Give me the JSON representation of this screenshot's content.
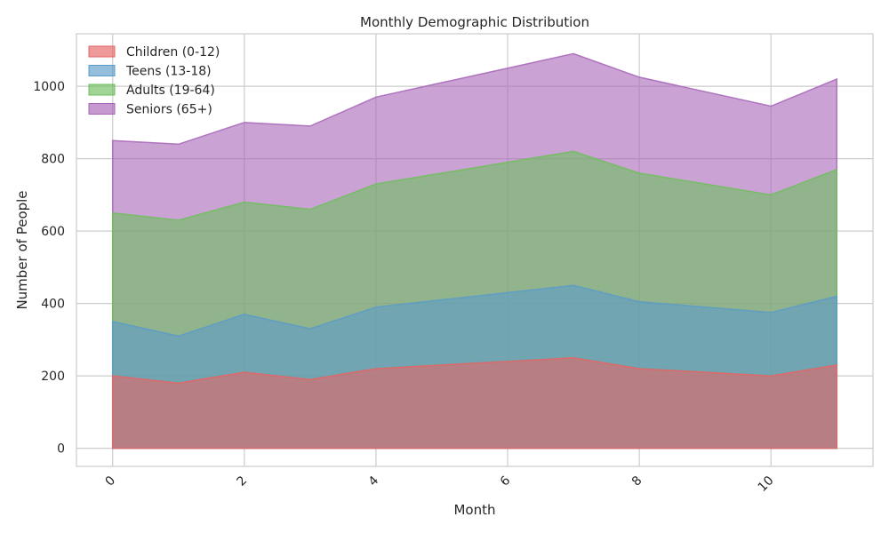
{
  "chart_data": {
    "type": "area",
    "title": "Monthly Demographic Distribution",
    "xlabel": "Month",
    "ylabel": "Number of People",
    "x": [
      0,
      1,
      2,
      3,
      4,
      5,
      6,
      7,
      8,
      9,
      10,
      11
    ],
    "xlim": [
      -0.55,
      11.55
    ],
    "ylim": [
      -50,
      1145
    ],
    "x_ticks": [
      0,
      2,
      4,
      6,
      8,
      10
    ],
    "y_ticks": [
      0,
      200,
      400,
      600,
      800,
      1000
    ],
    "grid": true,
    "legend_position": "top-left",
    "series": [
      {
        "name": "Children (0-12)",
        "color": "#e66464",
        "values": [
          200,
          180,
          210,
          190,
          220,
          230,
          240,
          250,
          220,
          210,
          200,
          230
        ]
      },
      {
        "name": "Teens (13-18)",
        "color": "#5a9bc9",
        "values": [
          350,
          310,
          370,
          330,
          390,
          410,
          430,
          450,
          405,
          390,
          375,
          420
        ]
      },
      {
        "name": "Adults (19-64)",
        "color": "#6dbf5c",
        "values": [
          650,
          630,
          680,
          660,
          730,
          760,
          790,
          820,
          760,
          730,
          700,
          770
        ]
      },
      {
        "name": "Seniors (65+)",
        "color": "#a764b8",
        "values": [
          850,
          840,
          900,
          890,
          970,
          1010,
          1050,
          1090,
          1025,
          985,
          945,
          1020
        ]
      }
    ]
  }
}
